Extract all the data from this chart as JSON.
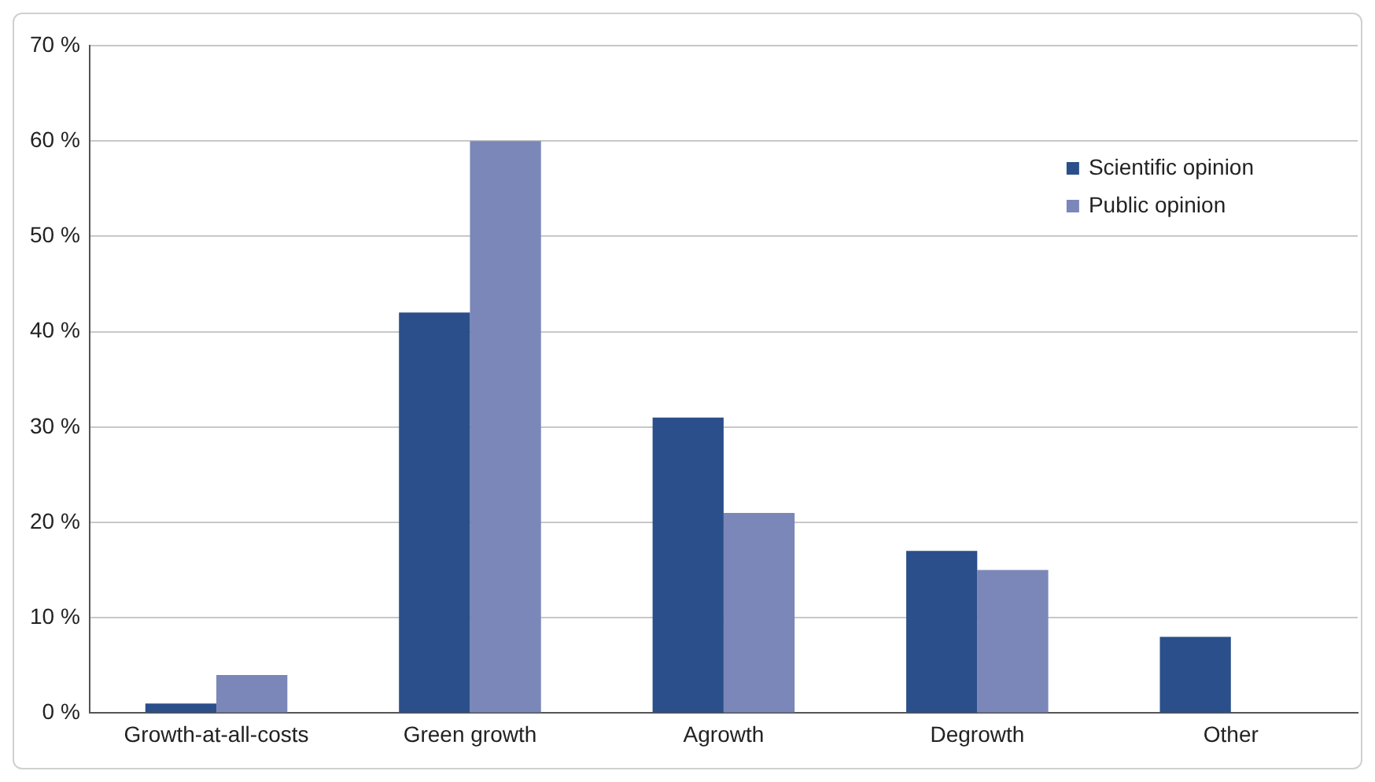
{
  "chart_data": {
    "type": "bar",
    "categories": [
      "Growth-at-all-costs",
      "Green growth",
      "Agrowth",
      "Degrowth",
      "Other"
    ],
    "series": [
      {
        "name": "Scientific opinion",
        "color": "#2b4f8a",
        "values": [
          1,
          42,
          31,
          17,
          8
        ]
      },
      {
        "name": "Public opinion",
        "color": "#7b87b8",
        "values": [
          4,
          60,
          21,
          15,
          0
        ]
      }
    ],
    "ylim": [
      0,
      70
    ],
    "yticks": [
      {
        "value": 0,
        "label": "0 %"
      },
      {
        "value": 10,
        "label": "10 %"
      },
      {
        "value": 20,
        "label": "20 %"
      },
      {
        "value": 30,
        "label": "30 %"
      },
      {
        "value": 40,
        "label": "40 %"
      },
      {
        "value": 50,
        "label": "50 %"
      },
      {
        "value": 60,
        "label": "60 %"
      },
      {
        "value": 70,
        "label": "70 %"
      }
    ],
    "grid": "y",
    "legend": "top right"
  }
}
